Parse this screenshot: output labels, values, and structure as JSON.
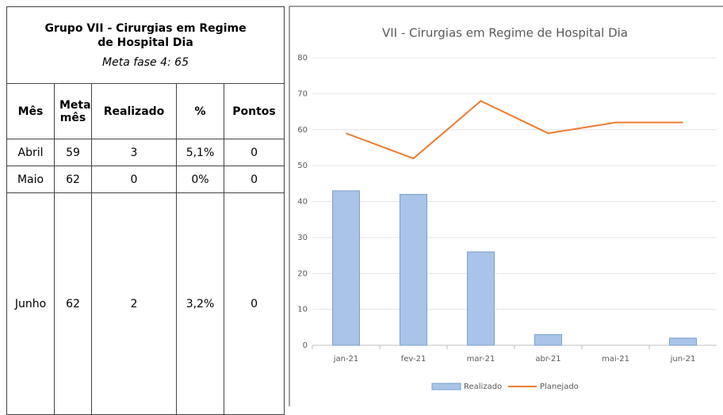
{
  "table": {
    "title": "Grupo VII - Cirurgias em Regime de Hospital Dia",
    "subtitle": "Meta fase 4: 65",
    "headers": [
      "Mês",
      "Meta mês",
      "Realizado",
      "%",
      "Pontos"
    ],
    "rows": [
      [
        "Abril",
        "59",
        "3",
        "5,1%",
        "0"
      ],
      [
        "Maio",
        "62",
        "0",
        "0%",
        "0"
      ],
      [
        "Junho",
        "62",
        "2",
        "3,2%",
        "0"
      ]
    ]
  },
  "chart_data": {
    "type": "combo",
    "title": "VII - Cirurgias em Regime de Hospital Dia",
    "categories": [
      "jan-21",
      "fev-21",
      "mar-21",
      "abr-21",
      "mai-21",
      "jun-21"
    ],
    "series": [
      {
        "name": "Realizado",
        "type": "bar",
        "color": "#a9c4e8",
        "values": [
          43,
          42,
          26,
          3,
          0,
          2
        ]
      },
      {
        "name": "Planejado",
        "type": "line",
        "color": "#ed7d31",
        "values": [
          59,
          52,
          68,
          59,
          62,
          62
        ]
      }
    ],
    "ylim": [
      0,
      80
    ],
    "yticks": [
      0,
      10,
      20,
      30,
      40,
      50,
      60,
      70,
      80
    ],
    "grid": true,
    "legend": "bottom"
  }
}
